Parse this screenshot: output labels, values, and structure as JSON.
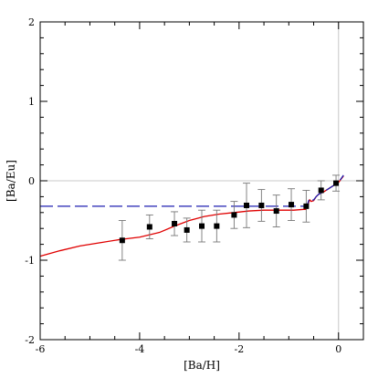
{
  "chart_data": {
    "type": "scatter",
    "title": "",
    "xlabel": "[Ba/H]",
    "ylabel": "[Ba/Eu]",
    "xlim": [
      -6,
      0.5
    ],
    "ylim": [
      -2,
      2
    ],
    "xticks": [
      -6,
      -4,
      -2,
      0
    ],
    "yticks": [
      -2,
      -1,
      0,
      1,
      2
    ],
    "x_tick_labels": [
      "-6",
      "-4",
      "-2",
      "0"
    ],
    "y_tick_labels": [
      "-2",
      "-1",
      "0",
      "1",
      "2"
    ],
    "reference_lines": [
      {
        "orientation": "horizontal",
        "value": 0,
        "color": "#c8c8c8"
      },
      {
        "orientation": "vertical",
        "value": 0,
        "color": "#c8c8c8"
      }
    ],
    "series": [
      {
        "kind": "points_with_errorbars",
        "color": "#000000",
        "points": [
          {
            "x": -4.35,
            "y": -0.75,
            "err": 0.25
          },
          {
            "x": -3.8,
            "y": -0.58,
            "err": 0.15
          },
          {
            "x": -3.3,
            "y": -0.54,
            "err": 0.15
          },
          {
            "x": -3.05,
            "y": -0.62,
            "err": 0.15
          },
          {
            "x": -2.75,
            "y": -0.57,
            "err": 0.2
          },
          {
            "x": -2.45,
            "y": -0.57,
            "err": 0.2
          },
          {
            "x": -2.1,
            "y": -0.43,
            "err": 0.17
          },
          {
            "x": -1.85,
            "y": -0.31,
            "err": 0.28
          },
          {
            "x": -1.55,
            "y": -0.31,
            "err": 0.2
          },
          {
            "x": -1.25,
            "y": -0.38,
            "err": 0.2
          },
          {
            "x": -0.95,
            "y": -0.3,
            "err": 0.2
          },
          {
            "x": -0.65,
            "y": -0.32,
            "err": 0.2
          },
          {
            "x": -0.35,
            "y": -0.12,
            "err": 0.12
          },
          {
            "x": -0.05,
            "y": -0.03,
            "err": 0.1
          }
        ]
      },
      {
        "kind": "line",
        "color": "#e00000",
        "dash": "solid",
        "x": [
          -6.0,
          -5.6,
          -5.2,
          -4.8,
          -4.4,
          -4.0,
          -3.6,
          -3.3,
          -3.0,
          -2.7,
          -2.4,
          -2.1,
          -1.8,
          -1.5,
          -1.2,
          -0.9,
          -0.7,
          -0.65,
          -0.62,
          -0.6,
          -0.58,
          -0.55,
          -0.5,
          -0.45,
          -0.4,
          -0.3,
          -0.2,
          -0.1,
          0.0,
          0.1
        ],
        "y": [
          -0.95,
          -0.88,
          -0.82,
          -0.78,
          -0.74,
          -0.71,
          -0.65,
          -0.57,
          -0.5,
          -0.45,
          -0.42,
          -0.4,
          -0.38,
          -0.37,
          -0.37,
          -0.37,
          -0.36,
          -0.36,
          -0.32,
          -0.27,
          -0.24,
          -0.26,
          -0.25,
          -0.2,
          -0.17,
          -0.14,
          -0.1,
          -0.06,
          -0.02,
          0.06
        ]
      },
      {
        "kind": "line",
        "color": "#1f1fb0",
        "dash": "long-dash",
        "x": [
          -6.0,
          -4.0,
          -2.0,
          -1.0,
          -0.7,
          -0.65,
          -0.62,
          -0.6,
          -0.58,
          -0.55,
          -0.5,
          -0.45,
          -0.4,
          -0.3,
          -0.2,
          -0.1,
          0.0,
          0.1
        ],
        "y": [
          -0.32,
          -0.32,
          -0.32,
          -0.32,
          -0.32,
          -0.32,
          -0.29,
          -0.25,
          -0.23,
          -0.25,
          -0.24,
          -0.2,
          -0.17,
          -0.14,
          -0.1,
          -0.06,
          -0.02,
          0.07
        ]
      }
    ]
  }
}
